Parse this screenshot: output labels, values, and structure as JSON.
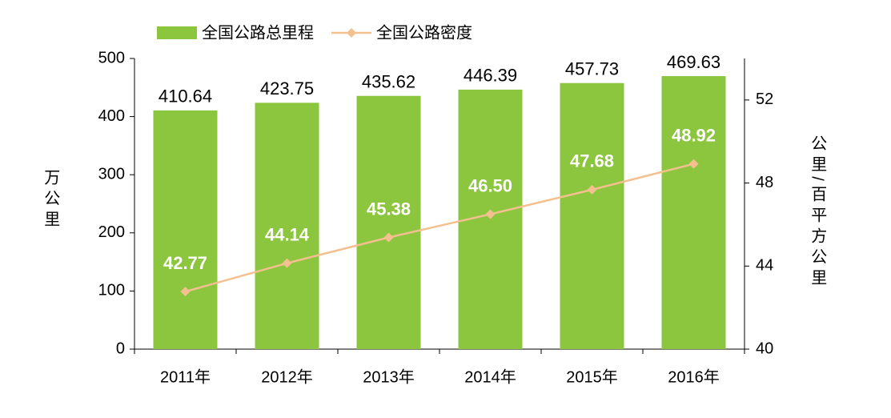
{
  "chart_data": {
    "type": "bar_line",
    "categories": [
      "2011年",
      "2012年",
      "2013年",
      "2014年",
      "2015年",
      "2016年"
    ],
    "series": [
      {
        "name": "全国公路总里程",
        "type": "bar",
        "color": "#8cc63f",
        "values": [
          410.64,
          423.75,
          435.62,
          446.39,
          457.73,
          469.63
        ]
      },
      {
        "name": "全国公路密度",
        "type": "line",
        "axis": "y2",
        "color": "#f4c08f",
        "values": [
          42.77,
          44.14,
          45.38,
          46.5,
          47.68,
          48.92
        ],
        "value_labels": [
          "42.77",
          "44.14",
          "45.38",
          "46.50",
          "47.68",
          "48.92"
        ]
      }
    ],
    "ylabel": "万公里",
    "y2label": "公里/百平方公里",
    "ylim": [
      0,
      500
    ],
    "yticks": [
      0,
      100,
      200,
      300,
      400,
      500
    ],
    "y2lim": [
      40,
      54
    ],
    "y2ticks": [
      40,
      44,
      48,
      52
    ]
  }
}
